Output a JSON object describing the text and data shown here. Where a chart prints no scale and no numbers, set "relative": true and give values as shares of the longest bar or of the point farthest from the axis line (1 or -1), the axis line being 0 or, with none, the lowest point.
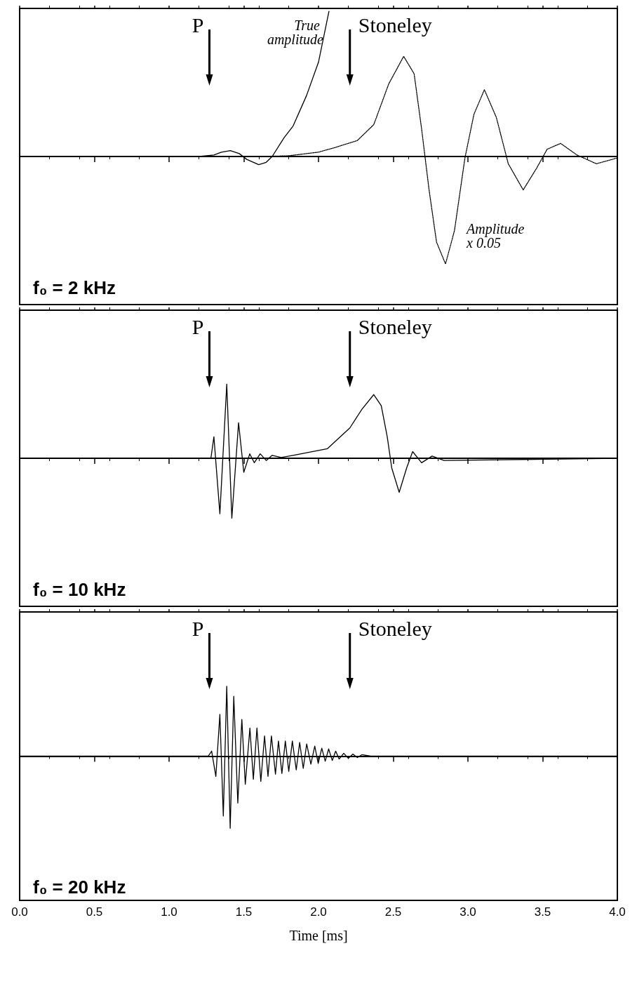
{
  "chart_data": [
    {
      "type": "line",
      "title": "f₀ = 2 kHz",
      "relative": true,
      "xlim": [
        0,
        4
      ],
      "xticks": [
        0,
        0.5,
        1,
        1.5,
        2,
        2.5,
        3,
        3.5,
        4
      ],
      "tick_labels": false,
      "series": [
        {
          "name": "True amplitude",
          "color": "#000000",
          "line_style": "solid",
          "x": [
            0,
            1.2,
            1.3,
            1.35,
            1.41,
            1.47,
            1.52,
            1.6,
            1.65,
            1.69,
            1.77,
            1.83,
            1.92,
            2.0,
            2.07
          ],
          "values": [
            0,
            0,
            0.01,
            0.03,
            0.04,
            0.02,
            -0.02,
            -0.056,
            -0.04,
            0,
            0.13,
            0.21,
            0.42,
            0.65,
            1
          ]
        },
        {
          "name": "Amplitude x 0.05",
          "color": "#000000",
          "line_style": "dotted",
          "x": [
            0,
            1.6,
            1.8,
            2.0,
            2.105,
            2.26,
            2.37,
            2.47,
            2.57,
            2.64,
            2.69,
            2.74,
            2.79,
            2.85,
            2.91,
            2.98,
            3.04,
            3.11,
            3.19,
            3.27,
            3.37,
            3.46,
            3.53,
            3.62,
            3.73,
            3.86,
            4.0
          ],
          "values": [
            0,
            0,
            0.005,
            0.03,
            0.06,
            0.11,
            0.22,
            0.5,
            0.69,
            0.57,
            0.19,
            -0.23,
            -0.59,
            -0.74,
            -0.51,
            -0.01,
            0.29,
            0.46,
            0.27,
            -0.05,
            -0.23,
            -0.08,
            0.05,
            0.09,
            0.01,
            -0.05,
            -0.01
          ]
        }
      ],
      "ref_lines": [
        {
          "axis": "x",
          "value": 1.27,
          "label": "P"
        },
        {
          "axis": "x",
          "value": 2.21,
          "label": "Stoneley"
        }
      ]
    },
    {
      "type": "line",
      "title": "f₀ = 10 kHz",
      "relative": true,
      "xlim": [
        0,
        4
      ],
      "xticks": [
        0,
        0.5,
        1,
        1.5,
        2,
        2.5,
        3,
        3.5,
        4
      ],
      "tick_labels": false,
      "series": [
        {
          "color": "#000000",
          "line_style": "solid",
          "x": [
            0,
            1.28,
            1.3,
            1.34,
            1.386,
            1.42,
            1.465,
            1.5,
            1.54,
            1.57,
            1.61,
            1.65,
            1.69,
            1.75,
            1.83,
            2.06,
            2.21,
            2.29,
            2.37,
            2.42,
            2.46,
            2.49,
            2.54,
            2.59,
            2.63,
            2.69,
            2.76,
            2.84,
            4.0
          ],
          "values": [
            0,
            0,
            0.29,
            -0.75,
            1,
            -0.81,
            0.48,
            -0.19,
            0.06,
            -0.06,
            0.06,
            -0.03,
            0.04,
            0.01,
            0.04,
            0.13,
            0.41,
            0.66,
            0.86,
            0.71,
            0.29,
            -0.13,
            -0.46,
            -0.13,
            0.09,
            -0.06,
            0.03,
            -0.03,
            0
          ]
        }
      ],
      "ref_lines": [
        {
          "axis": "x",
          "value": 1.27,
          "label": "P"
        },
        {
          "axis": "x",
          "value": 2.21,
          "label": "Stoneley"
        }
      ]
    },
    {
      "type": "line",
      "title": "f₀ = 20 kHz",
      "relative": true,
      "xlabel": "Time [ms]",
      "xlim": [
        0,
        4
      ],
      "xticks": [
        {
          "value": 0,
          "label": "0.0"
        },
        {
          "value": 0.5,
          "label": "0.5"
        },
        {
          "value": 1,
          "label": "1.0"
        },
        {
          "value": 1.5,
          "label": "1.5"
        },
        {
          "value": 2,
          "label": "2.0"
        },
        {
          "value": 2.5,
          "label": "2.5"
        },
        {
          "value": 3,
          "label": "3.0"
        },
        {
          "value": 3.5,
          "label": "3.5"
        },
        {
          "value": 4,
          "label": "4.0"
        }
      ],
      "tick_labels": "x",
      "series": [
        {
          "color": "#000000",
          "line_style": "solid",
          "x": [
            0,
            1.262,
            1.285,
            1.313,
            1.34,
            1.363,
            1.386,
            1.409,
            1.433,
            1.46,
            1.487,
            1.51,
            1.541,
            1.564,
            1.588,
            1.614,
            1.639,
            1.662,
            1.685,
            1.712,
            1.732,
            1.755,
            1.778,
            1.801,
            1.825,
            1.851,
            1.874,
            1.898,
            1.921,
            1.949,
            1.975,
            1.998,
            2.022,
            2.045,
            2.068,
            2.092,
            2.115,
            2.138,
            2.169,
            2.2,
            2.23,
            2.26,
            2.29,
            2.35,
            4.0
          ],
          "values": [
            0,
            0,
            0.07,
            -0.28,
            0.58,
            -0.83,
            0.97,
            -1,
            0.83,
            -0.65,
            0.51,
            -0.39,
            0.39,
            -0.32,
            0.39,
            -0.35,
            0.28,
            -0.28,
            0.28,
            -0.25,
            0.21,
            -0.24,
            0.21,
            -0.21,
            0.21,
            -0.19,
            0.19,
            -0.17,
            0.17,
            -0.11,
            0.14,
            -0.1,
            0.11,
            -0.07,
            0.1,
            -0.06,
            0.07,
            -0.04,
            0.04,
            -0.03,
            0.03,
            -0.02,
            0.02,
            0,
            0
          ]
        }
      ],
      "ref_lines": [
        {
          "axis": "x",
          "value": 1.27,
          "label": "P"
        },
        {
          "axis": "x",
          "value": 2.21,
          "label": "Stoneley"
        }
      ]
    }
  ]
}
